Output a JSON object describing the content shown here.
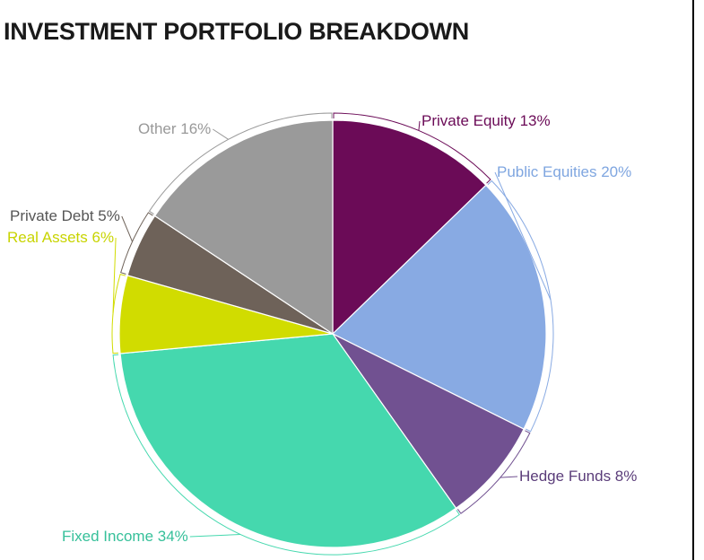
{
  "chart_data": {
    "type": "pie",
    "title": "INVESTMENT PORTFOLIO BREAKDOWN",
    "slices": [
      {
        "name": "Private Equity",
        "value": 13,
        "label": "Private Equity 13%",
        "color": "#6b0b57",
        "label_color": "#6b0b57"
      },
      {
        "name": "Public Equities",
        "value": 20,
        "label": "Public Equities 20%",
        "color": "#88aae3",
        "label_color": "#7fa6e0"
      },
      {
        "name": "Hedge Funds",
        "value": 8,
        "label": "Hedge Funds 8%",
        "color": "#715191",
        "label_color": "#5b3d7a"
      },
      {
        "name": "Fixed Income",
        "value": 34,
        "label": "Fixed Income 34%",
        "color": "#45d8ae",
        "label_color": "#36c09a"
      },
      {
        "name": "Real Assets",
        "value": 6,
        "label": "Real Assets 6%",
        "color": "#d1dc00",
        "label_color": "#c8d400"
      },
      {
        "name": "Private Debt",
        "value": 5,
        "label": "Private Debt 5%",
        "color": "#6e6259",
        "label_color": "#555555"
      },
      {
        "name": "Other",
        "value": 16,
        "label": "Other 16%",
        "color": "#9a9a9a",
        "label_color": "#999999"
      }
    ]
  }
}
